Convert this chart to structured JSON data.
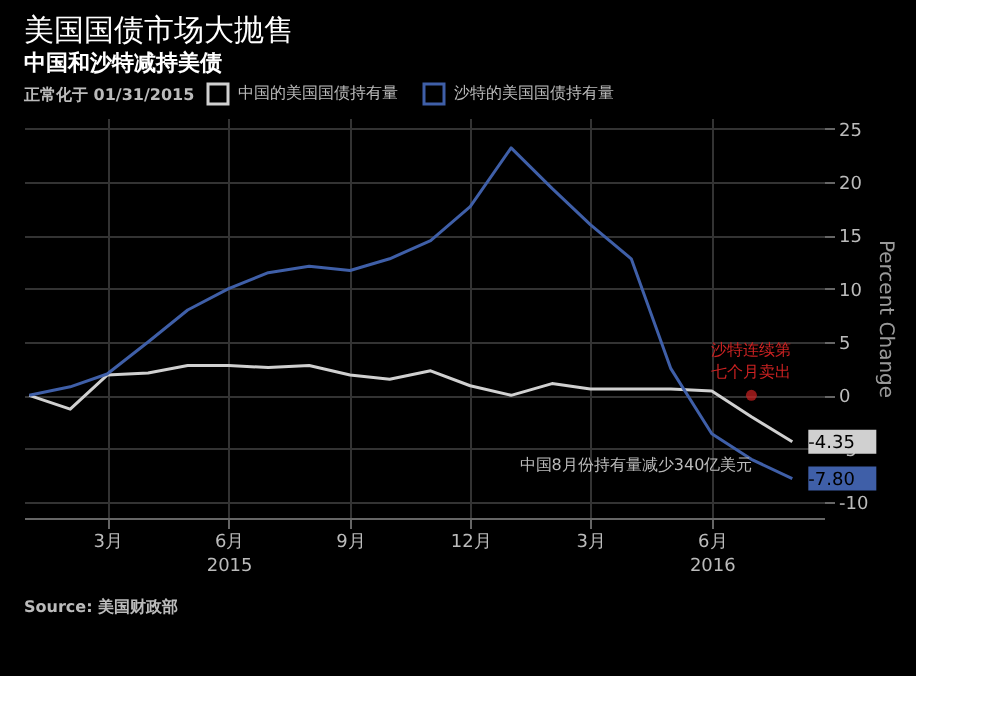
{
  "chart_data": {
    "type": "line",
    "title": "美国国债市场大抛售",
    "subtitle": "中国和沙特减持美债",
    "legend_title": "正常化于 01/31/2015",
    "ylabel": "Percent Change",
    "x": [
      "2015-01",
      "2015-02",
      "2015-03",
      "2015-04",
      "2015-05",
      "2015-06",
      "2015-07",
      "2015-08",
      "2015-09",
      "2015-10",
      "2015-11",
      "2015-12",
      "2016-01",
      "2016-02",
      "2016-03",
      "2016-04",
      "2016-05",
      "2016-06",
      "2016-07",
      "2016-08"
    ],
    "series": [
      {
        "name": "中国的美国国债持有量",
        "color": "#d0d0d0",
        "values": [
          0,
          -1.3,
          1.9,
          2.1,
          2.8,
          2.8,
          2.6,
          2.8,
          1.9,
          1.5,
          2.3,
          0.9,
          0,
          1.1,
          0.6,
          0.6,
          0.6,
          0.4,
          -2,
          -4.35
        ],
        "value_labels": [
          null,
          null,
          null,
          null,
          null,
          null,
          null,
          null,
          null,
          null,
          null,
          null,
          null,
          null,
          null,
          null,
          null,
          null,
          null,
          "-4.35"
        ]
      },
      {
        "name": "沙特的美国国债持有量",
        "color": "#3f5fa8",
        "values": [
          0,
          0.8,
          2,
          5,
          8,
          10,
          11.5,
          12.1,
          11.7,
          12.8,
          14.5,
          17.7,
          23.2,
          19.4,
          16,
          12.8,
          2.5,
          -3.6,
          -6,
          -7.8
        ],
        "value_labels": [
          null,
          null,
          null,
          null,
          null,
          null,
          null,
          null,
          null,
          null,
          null,
          null,
          null,
          null,
          null,
          null,
          null,
          null,
          null,
          "-7.80"
        ]
      }
    ],
    "xlim": [
      "2014-12-28",
      "2016-08-25"
    ],
    "xticks": [
      {
        "value": "2015-03",
        "label": "3月"
      },
      {
        "value": "2015-06",
        "label": "6月\n2015"
      },
      {
        "value": "2015-09",
        "label": "9月"
      },
      {
        "value": "2015-12",
        "label": "12月"
      },
      {
        "value": "2016-03",
        "label": "3月"
      },
      {
        "value": "2016-06",
        "label": "6月\n2016"
      }
    ],
    "ylim": [
      -11.5,
      26
    ],
    "yticks": [
      -10,
      -5,
      0,
      5,
      10,
      15,
      20,
      25
    ],
    "grid": true,
    "legend": "top",
    "marker": "none",
    "line_style": "solid",
    "annotations": [
      {
        "text": "沙特连续第七个月卖出",
        "x": "2016-07",
        "y": 0
      },
      {
        "text": "中国8月份持有量减少340亿美元",
        "x": "2016-08",
        "y": -4.35
      },
      "Source: 美国财政部"
    ]
  }
}
